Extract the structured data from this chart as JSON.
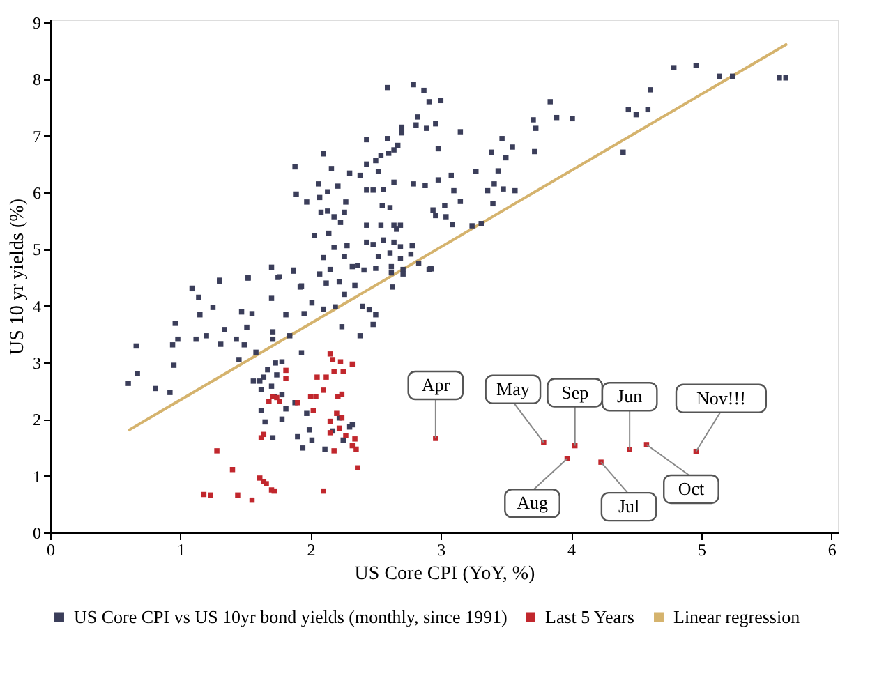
{
  "chart_data": {
    "type": "scatter",
    "xlabel": "US Core CPI (YoY, %)",
    "ylabel": "US 10 yr yields (%)",
    "xlim": [
      0,
      6.05
    ],
    "ylim": [
      0,
      9.05
    ],
    "xticks": [
      0,
      1,
      2,
      3,
      4,
      5,
      6
    ],
    "yticks": [
      0,
      1,
      2,
      3,
      4,
      5,
      6,
      7,
      8,
      9
    ],
    "grid": false,
    "legend": "bottom",
    "series": [
      {
        "name": "US Core CPI vs US 10yr bond yields (monthly, since 1991)",
        "color": "#3b3e5a",
        "marker": "square",
        "x": [
          0.6,
          0.66,
          0.67,
          0.81,
          0.92,
          0.94,
          0.95,
          0.96,
          0.98,
          1.09,
          1.12,
          1.14,
          1.15,
          1.2,
          1.25,
          1.3,
          1.31,
          1.34,
          1.43,
          1.45,
          1.47,
          1.49,
          1.51,
          1.52,
          1.55,
          1.58,
          1.56,
          1.61,
          1.62,
          1.64,
          1.67,
          1.7,
          1.71,
          1.71,
          1.7,
          1.72,
          1.62,
          1.65,
          1.71,
          1.73,
          1.74,
          1.75,
          1.78,
          1.78,
          1.81,
          1.84,
          1.78,
          1.81,
          1.87,
          1.88,
          1.9,
          1.93,
          1.92,
          1.94,
          1.97,
          1.99,
          2.01,
          1.95,
          2.01,
          2.07,
          2.1,
          2.12,
          2.15,
          2.19,
          2.22,
          2.24,
          2.26,
          2.32,
          2.34,
          2.3,
          2.25,
          2.38,
          2.4,
          2.45,
          2.48,
          2.5,
          2.11,
          2.17,
          2.22,
          2.32,
          2.62,
          2.63,
          2.71,
          2.91,
          2.59,
          2.79,
          2.87,
          2.91,
          3.0,
          2.82,
          2.81,
          2.89,
          2.96,
          2.7,
          2.7,
          2.67,
          2.64,
          2.6,
          2.43,
          2.59,
          2.54,
          2.5,
          2.43,
          2.1,
          1.88,
          2.16,
          2.3,
          2.38,
          2.52,
          2.64,
          2.79,
          2.88,
          2.98,
          2.43,
          2.48,
          2.56,
          1.89,
          2.06,
          2.07,
          2.13,
          2.21,
          2.27,
          1.97,
          2.08,
          2.13,
          2.26,
          2.55,
          2.61,
          2.94,
          2.96,
          3.04,
          2.18,
          2.23,
          2.14,
          2.03,
          2.43,
          2.54,
          2.64,
          2.69,
          2.66,
          2.28,
          2.18,
          2.43,
          2.48,
          2.56,
          2.64,
          2.69,
          2.78,
          2.1,
          2.26,
          2.52,
          2.61,
          2.69,
          2.77,
          2.83,
          2.92,
          2.36,
          2.41,
          2.5,
          2.62,
          2.71,
          1.7,
          1.76,
          1.87,
          1.93,
          1.3,
          1.52,
          1.09,
          2.98,
          3.15,
          3.27,
          3.39,
          3.47,
          3.55,
          3.5,
          3.44,
          3.41,
          3.36,
          3.48,
          3.57,
          3.4,
          3.15,
          3.1,
          3.08,
          3.03,
          3.09,
          3.24,
          3.31,
          2.93,
          3.71,
          3.73,
          3.72,
          3.84,
          3.89,
          4.01,
          4.4,
          4.44,
          4.5,
          4.59,
          4.61,
          4.79,
          4.96,
          5.14,
          5.24,
          5.6,
          5.65
        ],
        "values": [
          2.63,
          3.29,
          2.8,
          2.54,
          2.47,
          3.31,
          2.95,
          3.69,
          3.41,
          4.31,
          3.41,
          4.15,
          3.84,
          3.47,
          3.97,
          4.43,
          3.32,
          3.58,
          3.41,
          3.05,
          3.89,
          3.31,
          3.62,
          4.49,
          3.86,
          3.18,
          2.67,
          2.67,
          2.52,
          2.74,
          2.87,
          4.13,
          3.54,
          3.41,
          2.58,
          2.4,
          2.15,
          1.95,
          1.67,
          2.99,
          2.78,
          4.5,
          2.43,
          3.01,
          3.84,
          3.47,
          2.0,
          2.18,
          4.61,
          2.29,
          1.69,
          3.17,
          4.33,
          1.49,
          2.1,
          1.81,
          1.63,
          3.86,
          4.05,
          4.56,
          3.94,
          4.4,
          4.64,
          3.98,
          4.42,
          3.63,
          4.2,
          4.69,
          4.36,
          1.86,
          1.63,
          3.47,
          3.99,
          3.93,
          3.67,
          3.84,
          1.47,
          1.79,
          2.02,
          1.9,
          4.69,
          4.33,
          4.64,
          4.64,
          7.85,
          7.9,
          7.8,
          7.6,
          7.62,
          7.33,
          7.19,
          7.13,
          7.21,
          7.15,
          7.05,
          6.83,
          6.75,
          6.69,
          6.93,
          6.95,
          6.65,
          6.56,
          6.5,
          6.68,
          6.45,
          6.42,
          6.34,
          6.3,
          6.37,
          6.18,
          6.15,
          6.12,
          6.22,
          6.04,
          6.04,
          6.05,
          5.97,
          6.15,
          5.91,
          6.01,
          6.11,
          5.83,
          5.83,
          5.65,
          5.67,
          5.65,
          5.77,
          5.73,
          5.69,
          5.59,
          5.57,
          5.57,
          5.47,
          5.28,
          5.24,
          5.42,
          5.42,
          5.42,
          5.42,
          5.35,
          5.06,
          5.03,
          5.12,
          5.08,
          5.16,
          5.12,
          5.04,
          5.06,
          4.85,
          4.87,
          4.87,
          4.93,
          4.83,
          4.91,
          4.75,
          4.66,
          4.71,
          4.63,
          4.66,
          4.58,
          4.56,
          4.68,
          4.51,
          4.63,
          4.35,
          4.45,
          4.49,
          4.3,
          6.77,
          7.07,
          6.37,
          6.71,
          6.95,
          6.8,
          6.61,
          6.38,
          6.15,
          6.03,
          6.06,
          6.03,
          5.8,
          5.84,
          6.03,
          6.3,
          5.77,
          5.43,
          5.41,
          5.45,
          4.65,
          7.28,
          7.13,
          6.72,
          7.6,
          7.32,
          7.3,
          6.71,
          7.46,
          7.37,
          7.46,
          7.81,
          8.2,
          8.24,
          8.05,
          8.05,
          8.02,
          8.02
        ]
      },
      {
        "name": "Last 5 Years",
        "color": "#c1272d",
        "marker": "square",
        "x": [
          1.18,
          1.23,
          1.28,
          1.4,
          1.44,
          1.55,
          1.61,
          1.64,
          1.66,
          1.7,
          1.72,
          2.1,
          2.36,
          1.64,
          1.62,
          1.68,
          1.71,
          1.74,
          1.76,
          1.81,
          1.81,
          1.9,
          2.0,
          2.02,
          2.04,
          2.05,
          2.1,
          2.12,
          2.15,
          2.17,
          2.18,
          2.21,
          2.23,
          2.25,
          2.24,
          2.32,
          2.15,
          2.15,
          2.18,
          2.22,
          2.24,
          2.27,
          2.32,
          2.34,
          2.35,
          2.2,
          2.96,
          3.79,
          3.97,
          4.03,
          4.23,
          4.45,
          4.58,
          4.96
        ],
        "values": [
          0.67,
          0.66,
          1.44,
          1.11,
          0.66,
          0.57,
          0.96,
          0.9,
          0.86,
          0.75,
          0.73,
          0.73,
          1.14,
          1.73,
          1.67,
          2.31,
          2.4,
          2.38,
          2.31,
          2.72,
          2.86,
          2.29,
          2.4,
          2.15,
          2.4,
          2.74,
          2.51,
          2.74,
          3.15,
          3.05,
          2.84,
          2.4,
          3.01,
          2.84,
          2.44,
          2.97,
          1.96,
          1.76,
          1.44,
          1.84,
          2.02,
          1.71,
          1.53,
          1.65,
          1.47,
          2.1,
          1.66,
          1.59,
          1.3,
          1.53,
          1.24,
          1.46,
          1.55,
          1.43
        ]
      },
      {
        "name": "Linear regression",
        "type": "line",
        "marker": "none",
        "line_style": "solid",
        "color": "#d5b36d",
        "x": [
          0.6,
          5.66
        ],
        "values": [
          1.8,
          8.62
        ]
      }
    ],
    "annotations": [
      {
        "text": "Apr",
        "x": 2.96,
        "y": 1.66
      },
      {
        "text": "May",
        "x": 3.79,
        "y": 1.59
      },
      {
        "text": "Aug",
        "x": 3.97,
        "y": 1.3
      },
      {
        "text": "Sep",
        "x": 4.03,
        "y": 1.53
      },
      {
        "text": "Jul",
        "x": 4.23,
        "y": 1.24
      },
      {
        "text": "Jun",
        "x": 4.45,
        "y": 1.46
      },
      {
        "text": "Oct",
        "x": 4.58,
        "y": 1.55
      },
      {
        "text": "Nov!!!",
        "x": 4.96,
        "y": 1.43
      }
    ]
  }
}
